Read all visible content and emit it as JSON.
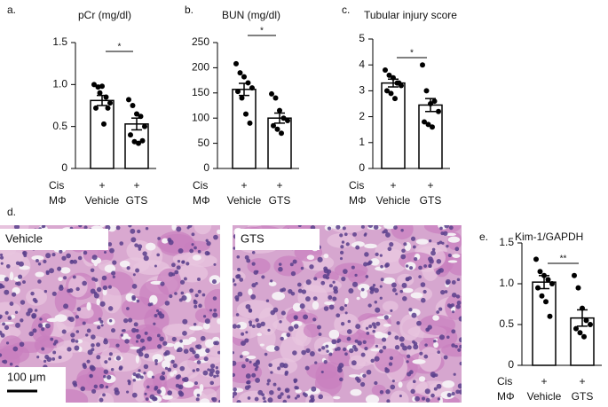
{
  "chart_data": [
    {
      "type": "bar",
      "panel": "a.",
      "title": "pCr (mg/dl)",
      "categories": [
        "Vehicle",
        "GTS"
      ],
      "row_labels": [
        "Cis",
        "MΦ"
      ],
      "treatment": [
        "+",
        "+"
      ],
      "values": [
        0.81,
        0.53
      ],
      "errors": [
        0.06,
        0.07
      ],
      "points": [
        [
          1.0,
          0.97,
          0.98,
          0.85,
          0.78,
          0.72,
          0.9,
          0.53,
          0.72
        ],
        [
          0.82,
          0.75,
          0.65,
          0.62,
          0.5,
          0.4,
          0.32,
          0.3,
          0.33
        ]
      ],
      "significance": "*",
      "ylim": [
        0,
        1.5
      ],
      "yticks": [
        0,
        0.5,
        {
          "value": 1,
          "label": "1.0"
        },
        1.5
      ]
    },
    {
      "type": "bar",
      "panel": "b.",
      "title": "BUN (mg/dl)",
      "categories": [
        "Vehicle",
        "GTS"
      ],
      "row_labels": [
        "Cis",
        "MΦ"
      ],
      "treatment": [
        "+",
        "+"
      ],
      "values": [
        157,
        100
      ],
      "errors": [
        12,
        10
      ],
      "points": [
        [
          208,
          190,
          182,
          170,
          160,
          153,
          140,
          108,
          90
        ],
        [
          148,
          140,
          115,
          100,
          95,
          85,
          78,
          70
        ]
      ],
      "significance": "*",
      "ylim": [
        0,
        250
      ],
      "yticks": [
        0,
        50,
        100,
        150,
        200,
        250
      ]
    },
    {
      "type": "bar",
      "panel": "c.",
      "title": "Tubular injury score",
      "categories": [
        "Vehicle",
        "GTS"
      ],
      "row_labels": [
        "Cis",
        "MΦ"
      ],
      "treatment": [
        "+",
        "+"
      ],
      "values": [
        3.3,
        2.45
      ],
      "errors": [
        0.15,
        0.25
      ],
      "points": [
        [
          3.8,
          3.6,
          3.5,
          3.3,
          3.2,
          3.0,
          2.9,
          2.7,
          3.3
        ],
        [
          4.0,
          3.0,
          2.5,
          2.6,
          2.2,
          1.8,
          1.7,
          1.6
        ]
      ],
      "significance": "*",
      "ylim": [
        0,
        5
      ],
      "yticks": [
        0,
        1,
        2,
        3,
        4,
        5
      ]
    },
    {
      "type": "bar",
      "panel": "e.",
      "title": "Kim-1/GAPDH",
      "categories": [
        "Vehicle",
        "GTS"
      ],
      "row_labels": [
        "Cis",
        "MΦ"
      ],
      "treatment": [
        "+",
        "+"
      ],
      "values": [
        1.02,
        0.58
      ],
      "errors": [
        0.08,
        0.1
      ],
      "points": [
        [
          1.3,
          1.15,
          1.1,
          1.05,
          1.0,
          0.95,
          0.85,
          0.78,
          0.6
        ],
        [
          1.1,
          0.95,
          0.7,
          0.55,
          0.5,
          0.45,
          0.4,
          0.35
        ]
      ],
      "significance": "**",
      "ylim": [
        0,
        1.5
      ],
      "yticks": [
        0,
        0.5,
        {
          "value": 1,
          "label": "1.0"
        },
        1.5
      ]
    }
  ],
  "images": {
    "panel": "d.",
    "labels": [
      "Vehicle",
      "GTS"
    ],
    "scale_bar": "100 μm"
  }
}
